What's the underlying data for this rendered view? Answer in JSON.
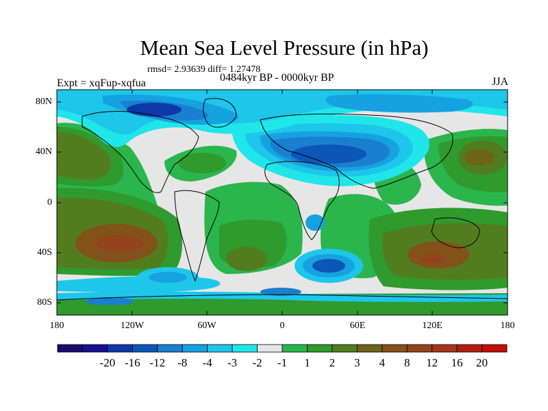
{
  "title": "Mean Sea Level Pressure (in hPa)",
  "stats": "rmsd= 2.93639 diff= 1.27478",
  "period": "0484kyr BP - 0000kyr BP",
  "experiment": "Expt = xqFup-xqfua",
  "season": "JJA",
  "lat_labels": [
    "80N",
    "40N",
    "0",
    "40S",
    "80S"
  ],
  "lon_labels": [
    "180",
    "120W",
    "60W",
    "0",
    "60E",
    "120E",
    "180"
  ],
  "colorbar": {
    "colors": [
      "#1a0a6b",
      "#170f90",
      "#0e38a8",
      "#0b57b8",
      "#1a7fce",
      "#16a2e0",
      "#1ec6ea",
      "#20e6ea",
      "#e6e6e6",
      "#2bb54d",
      "#2f9a2d",
      "#527d1e",
      "#6d6417",
      "#82521a",
      "#93431c",
      "#a5351a",
      "#b01f12",
      "#c40e08"
    ],
    "labels": [
      "-20",
      "-16",
      "-12",
      "-8",
      "-4",
      "-3",
      "-2",
      "-1",
      "1",
      "2",
      "3",
      "4",
      "8",
      "12",
      "16",
      "20"
    ]
  }
}
